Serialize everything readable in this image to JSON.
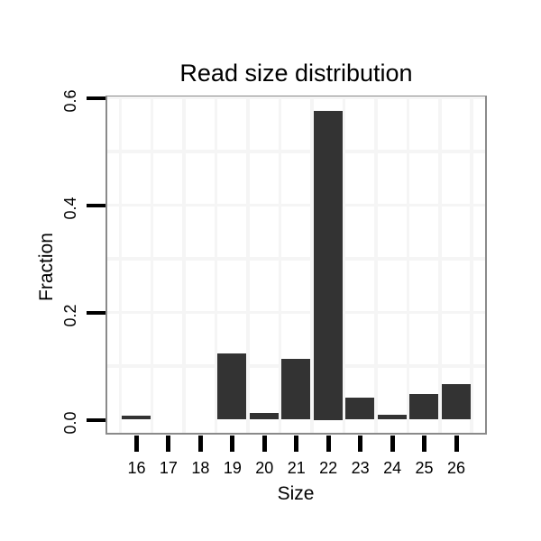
{
  "chart_data": {
    "type": "bar",
    "title": "Read size distribution",
    "xlabel": "Size",
    "ylabel": "Fraction",
    "categories": [
      "16",
      "17",
      "18",
      "19",
      "20",
      "21",
      "22",
      "23",
      "24",
      "25",
      "26"
    ],
    "values": [
      0.008,
      0,
      0,
      0.123,
      0.013,
      0.113,
      0.575,
      0.042,
      0.009,
      0.048,
      0.067
    ],
    "ylim": [
      0,
      0.63
    ],
    "yticks": [
      {
        "label": "0.0",
        "value": 0.0
      },
      {
        "label": "0.2",
        "value": 0.2
      },
      {
        "label": "0.4",
        "value": 0.4
      },
      {
        "label": "0.6",
        "value": 0.6
      }
    ],
    "grid": "minor gridlines at 0.1 y-intervals and between category columns",
    "legend": "none"
  },
  "style": {
    "bar_color": "#333333",
    "panel_border_color": "#8a8a8a",
    "gridline_color": "#f5f5f5",
    "tick_color": "#000000",
    "text_color": "#000000",
    "background_color": "#ffffff"
  }
}
